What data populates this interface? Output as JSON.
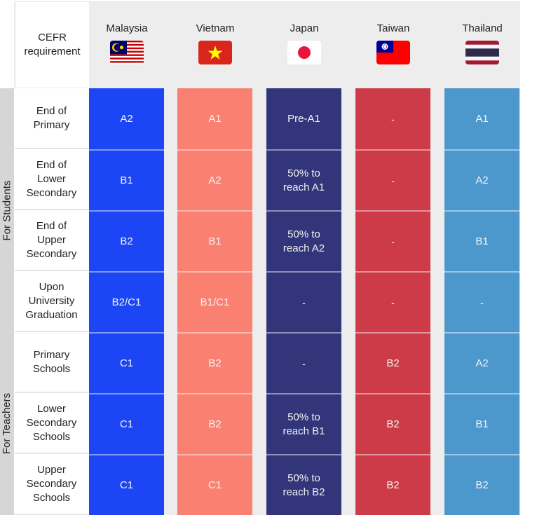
{
  "table": {
    "corner_label": "CEFR requirement",
    "countries": [
      {
        "name": "Malaysia",
        "flag_icon": "malaysia-flag-icon",
        "color": "#1c46f5"
      },
      {
        "name": "Vietnam",
        "flag_icon": "vietnam-flag-icon",
        "color": "#fa8072"
      },
      {
        "name": "Japan",
        "flag_icon": "japan-flag-icon",
        "color": "#32357a"
      },
      {
        "name": "Taiwan",
        "flag_icon": "taiwan-flag-icon",
        "color": "#cc3b47"
      },
      {
        "name": "Thailand",
        "flag_icon": "thailand-flag-icon",
        "color": "#4c97cc"
      }
    ],
    "groups": [
      {
        "label": "For Students"
      },
      {
        "label": "For Teachers"
      }
    ],
    "rows": [
      {
        "label": "End of Primary",
        "group": 0,
        "values": [
          "A2",
          "A1",
          "Pre-A1",
          "-",
          "A1"
        ]
      },
      {
        "label": "End of Lower Secondary",
        "group": 0,
        "values": [
          "B1",
          "A2",
          "50% to reach A1",
          "-",
          "A2"
        ]
      },
      {
        "label": "End of Upper Secondary",
        "group": 0,
        "values": [
          "B2",
          "B1",
          "50% to reach A2",
          "-",
          "B1"
        ]
      },
      {
        "label": "Upon University Graduation",
        "group": 0,
        "values": [
          "B2/C1",
          "B1/C1",
          "-",
          "-",
          "-"
        ]
      },
      {
        "label": "Primary Schools",
        "group": 1,
        "values": [
          "C1",
          "B2",
          "-",
          "B2",
          "A2"
        ]
      },
      {
        "label": "Lower Secondary Schools",
        "group": 1,
        "values": [
          "C1",
          "B2",
          "50% to reach B1",
          "B2",
          "B1"
        ]
      },
      {
        "label": "Upper Secondary Schools",
        "group": 1,
        "values": [
          "C1",
          "C1",
          "50% to reach B2",
          "B2",
          "B2"
        ]
      }
    ]
  }
}
